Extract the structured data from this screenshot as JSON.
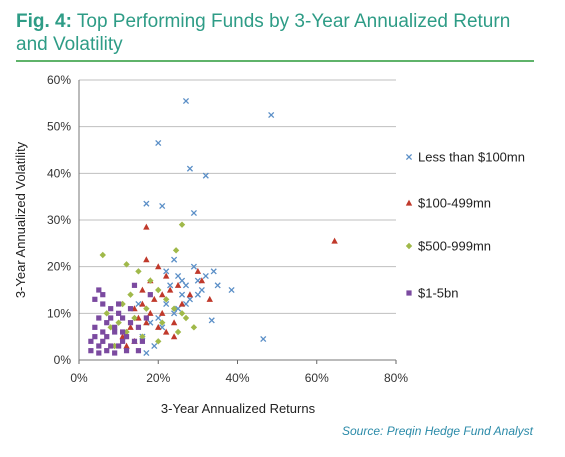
{
  "header": {
    "fig_label": "Fig. 4:",
    "title": "Top Performing Funds by 3-Year Annualized Return and Volatility"
  },
  "source": "Source: Preqin Hedge Fund Analyst",
  "colors": {
    "title": "#2e9c86",
    "rule": "#5fb36a",
    "grid": "#bfbfbf"
  },
  "chart_data": {
    "type": "scatter",
    "xlabel": "3-Year Annualized Returns",
    "ylabel": "3-Year Annualized Volatility",
    "xlim": [
      0,
      80
    ],
    "ylim": [
      0,
      60
    ],
    "x_ticks": [
      "0%",
      "20%",
      "40%",
      "60%",
      "80%"
    ],
    "y_ticks": [
      "0%",
      "10%",
      "20%",
      "30%",
      "40%",
      "50%",
      "60%"
    ],
    "grid": "horizontal",
    "legend_position": "right",
    "series": [
      {
        "name": "Less than $100mn",
        "marker": "x",
        "color": "#5b8fc7",
        "points": [
          [
            27,
            55.5
          ],
          [
            48.5,
            52.5
          ],
          [
            20,
            46.5
          ],
          [
            28,
            41
          ],
          [
            32,
            39.5
          ],
          [
            17,
            33.5
          ],
          [
            21,
            33
          ],
          [
            29,
            31.5
          ],
          [
            29,
            20
          ],
          [
            32,
            18
          ],
          [
            34,
            19
          ],
          [
            38.5,
            15
          ],
          [
            33.5,
            8.5
          ],
          [
            46.5,
            4.5
          ],
          [
            25,
            18
          ],
          [
            27,
            16
          ],
          [
            30,
            17
          ],
          [
            31,
            15
          ],
          [
            26,
            14
          ],
          [
            28,
            13
          ],
          [
            22,
            12
          ],
          [
            24,
            10
          ],
          [
            20,
            9
          ],
          [
            18,
            8
          ],
          [
            16,
            5
          ],
          [
            17,
            1.5
          ],
          [
            23,
            16
          ],
          [
            25,
            11
          ],
          [
            27,
            12
          ],
          [
            21,
            7
          ],
          [
            19,
            3
          ],
          [
            15,
            12
          ],
          [
            24,
            21.5
          ],
          [
            30,
            14
          ],
          [
            35,
            16
          ],
          [
            22,
            19
          ],
          [
            26,
            17
          ]
        ]
      },
      {
        "name": "$100-499mn",
        "marker": "triangle",
        "color": "#c0392b",
        "points": [
          [
            64.5,
            25.5
          ],
          [
            17,
            28.5
          ],
          [
            17,
            21.5
          ],
          [
            20,
            20
          ],
          [
            22,
            18
          ],
          [
            18,
            17
          ],
          [
            25,
            16
          ],
          [
            23,
            15
          ],
          [
            21,
            14
          ],
          [
            19,
            13
          ],
          [
            16,
            12
          ],
          [
            14,
            11
          ],
          [
            15,
            9
          ],
          [
            17,
            8
          ],
          [
            20,
            7
          ],
          [
            22,
            6
          ],
          [
            24,
            5
          ],
          [
            14,
            4
          ],
          [
            12,
            3
          ],
          [
            18,
            10
          ],
          [
            26,
            12
          ],
          [
            28,
            14
          ],
          [
            31,
            17
          ],
          [
            33,
            13
          ],
          [
            30,
            19
          ],
          [
            16,
            15
          ],
          [
            13,
            7
          ],
          [
            21,
            10
          ],
          [
            24,
            8
          ],
          [
            11,
            5
          ]
        ]
      },
      {
        "name": "$500-999mn",
        "marker": "diamond",
        "color": "#a0b94a",
        "points": [
          [
            26,
            29
          ],
          [
            24.5,
            23.5
          ],
          [
            6,
            22.5
          ],
          [
            12,
            20.5
          ],
          [
            15,
            19
          ],
          [
            18,
            17
          ],
          [
            20,
            15
          ],
          [
            22,
            13
          ],
          [
            24,
            11
          ],
          [
            26,
            10
          ],
          [
            14,
            9
          ],
          [
            10,
            8
          ],
          [
            8,
            7
          ],
          [
            12,
            6
          ],
          [
            16,
            5
          ],
          [
            20,
            4
          ],
          [
            9,
            3
          ],
          [
            11,
            12
          ],
          [
            13,
            14
          ],
          [
            17,
            11
          ],
          [
            21,
            8
          ],
          [
            25,
            6
          ],
          [
            27,
            9
          ],
          [
            29,
            7
          ],
          [
            7,
            10
          ]
        ]
      },
      {
        "name": "$1-5bn",
        "marker": "square",
        "color": "#7b4aa0",
        "points": [
          [
            5,
            15
          ],
          [
            6,
            14
          ],
          [
            4,
            13
          ],
          [
            6,
            12
          ],
          [
            8,
            11
          ],
          [
            10,
            10
          ],
          [
            5,
            9
          ],
          [
            7,
            8
          ],
          [
            9,
            7
          ],
          [
            11,
            6
          ],
          [
            4,
            5
          ],
          [
            6,
            4
          ],
          [
            8,
            3
          ],
          [
            3,
            2
          ],
          [
            5,
            1.5
          ],
          [
            12,
            5
          ],
          [
            14,
            4
          ],
          [
            13,
            8
          ],
          [
            15,
            7
          ],
          [
            10,
            3
          ],
          [
            7,
            5
          ],
          [
            9,
            6
          ],
          [
            11,
            9
          ],
          [
            12,
            2
          ],
          [
            16,
            4
          ],
          [
            3,
            4
          ],
          [
            4,
            7
          ],
          [
            6,
            6
          ],
          [
            8,
            9
          ],
          [
            10,
            12
          ],
          [
            17,
            9
          ],
          [
            18,
            14
          ],
          [
            14,
            16
          ],
          [
            13,
            11
          ],
          [
            9,
            1.5
          ],
          [
            11,
            4
          ],
          [
            15,
            2
          ],
          [
            5,
            3
          ],
          [
            7,
            2
          ]
        ]
      }
    ]
  }
}
